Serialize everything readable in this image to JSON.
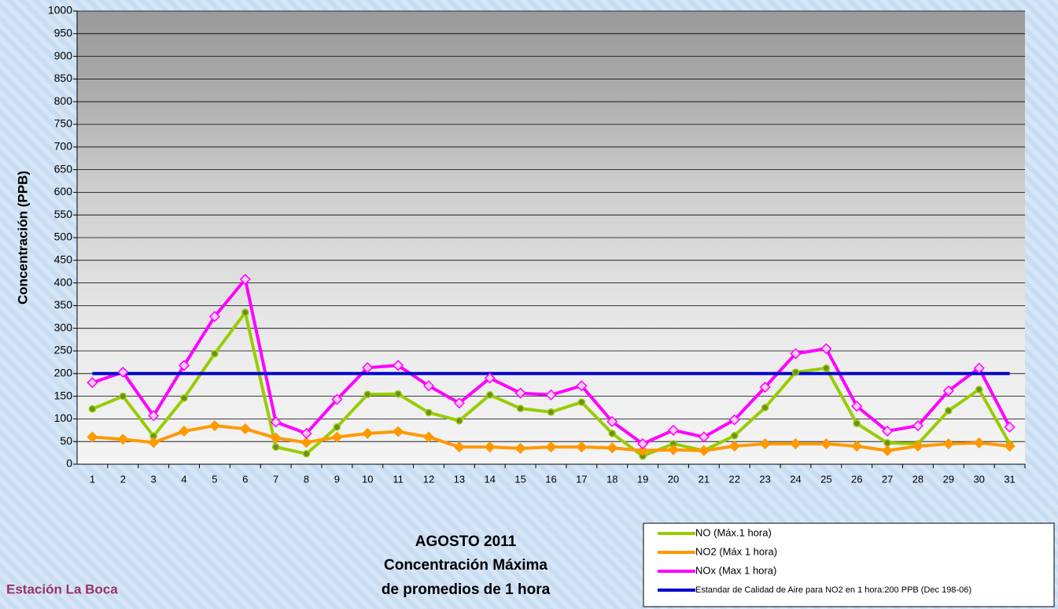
{
  "chart_data": {
    "type": "line",
    "title": [
      "AGOSTO 2011",
      "Concentración Máxima",
      "de promedios de 1 hora"
    ],
    "station": "Estación La Boca",
    "y_label": "Concentración  (PPB)",
    "categories": [
      "1",
      "2",
      "3",
      "4",
      "5",
      "6",
      "7",
      "8",
      "9",
      "10",
      "11",
      "12",
      "13",
      "14",
      "15",
      "16",
      "17",
      "18",
      "19",
      "20",
      "21",
      "22",
      "23",
      "24",
      "25",
      "26",
      "27",
      "28",
      "29",
      "30",
      "31"
    ],
    "series": [
      {
        "name": "NO (Máx.1 hora)",
        "color": "#99cc00",
        "marker": "circle",
        "values": [
          122,
          150,
          62,
          146,
          244,
          335,
          38,
          23,
          82,
          154,
          155,
          114,
          96,
          153,
          123,
          115,
          137,
          68,
          18,
          45,
          30,
          63,
          125,
          203,
          212,
          90,
          47,
          45,
          118,
          165,
          45
        ]
      },
      {
        "name": "NO2 (Máx 1 hora)",
        "color": "#ff9900",
        "marker": "diamond",
        "values": [
          60,
          55,
          48,
          73,
          85,
          78,
          58,
          48,
          60,
          68,
          72,
          60,
          38,
          38,
          35,
          38,
          38,
          36,
          30,
          32,
          30,
          40,
          45,
          45,
          45,
          40,
          30,
          40,
          45,
          47,
          40
        ]
      },
      {
        "name": "NOx (Max 1 hora)",
        "color": "#ff00ff",
        "marker": "diamond",
        "values": [
          180,
          203,
          107,
          218,
          326,
          408,
          93,
          68,
          143,
          213,
          218,
          173,
          135,
          190,
          157,
          153,
          173,
          94,
          45,
          75,
          60,
          98,
          170,
          244,
          255,
          128,
          73,
          85,
          162,
          212,
          82
        ]
      },
      {
        "name": "Estandar de Calidad de Aire para NO2 en 1 hora:200 PPB (Dec 198-06)",
        "color": "#0000cc",
        "marker": "none",
        "values": [
          200,
          200,
          200,
          200,
          200,
          200,
          200,
          200,
          200,
          200,
          200,
          200,
          200,
          200,
          200,
          200,
          200,
          200,
          200,
          200,
          200,
          200,
          200,
          200,
          200,
          200,
          200,
          200,
          200,
          200,
          200
        ]
      }
    ],
    "ylim": [
      0,
      1000
    ],
    "yticks": [
      0,
      50,
      100,
      150,
      200,
      250,
      300,
      350,
      400,
      450,
      500,
      550,
      600,
      650,
      700,
      750,
      800,
      850,
      900,
      950,
      1000
    ],
    "grid": true
  }
}
